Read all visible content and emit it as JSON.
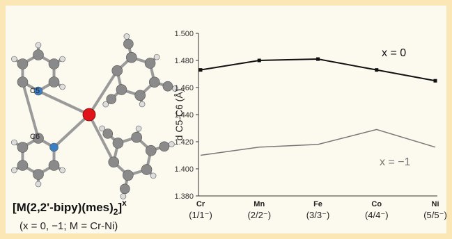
{
  "molecule": {
    "atom_labels": [
      "C5",
      "C6"
    ],
    "formula": {
      "main": "[M(2,2'-bipy)(mes)",
      "subscript": "2",
      "close": "]",
      "superscript": "x"
    },
    "caption": "(x = 0, −1; M = Cr-Ni)"
  },
  "chart_data": {
    "type": "line",
    "ylabel": "d C5-C6 (Å)",
    "categories": [
      "Cr",
      "Mn",
      "Fe",
      "Co",
      "Ni"
    ],
    "category_notes": [
      "(1/1⁻)",
      "(2/2⁻)",
      "(3/3⁻)",
      "(4/4⁻)",
      "(5/5⁻)"
    ],
    "series": [
      {
        "name": "x = 0",
        "color": "#111111",
        "marker": true,
        "values": [
          1.473,
          1.48,
          1.481,
          1.473,
          1.465
        ]
      },
      {
        "name": "x = −1",
        "color": "#777777",
        "marker": false,
        "values": [
          1.41,
          1.416,
          1.418,
          1.429,
          1.416
        ]
      }
    ],
    "ylim": [
      1.38,
      1.5
    ],
    "yticks": [
      {
        "value": 1.38,
        "label": "1.380"
      },
      {
        "value": 1.4,
        "label": "1.400"
      },
      {
        "value": 1.42,
        "label": "1.420"
      },
      {
        "value": 1.44,
        "label": "1.440"
      },
      {
        "value": 1.46,
        "label": "1.460"
      },
      {
        "value": 1.48,
        "label": "1.480"
      },
      {
        "value": 1.5,
        "label": "1.500"
      }
    ],
    "grid": false
  }
}
